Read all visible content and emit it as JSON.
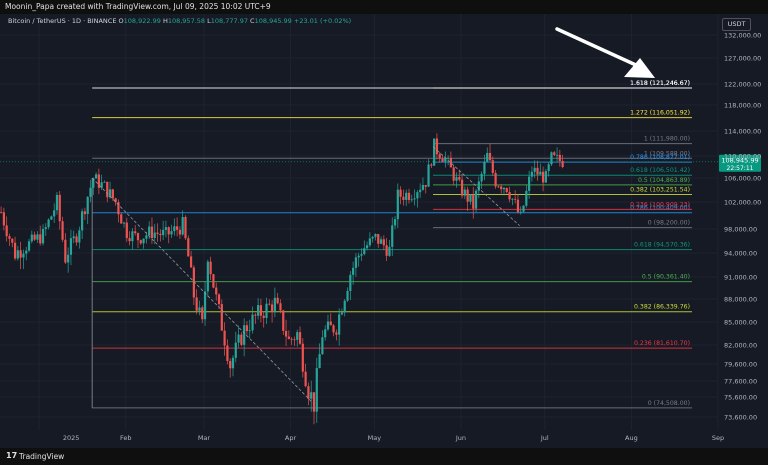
{
  "header": {
    "attribution": "Moonin_Papa created with TradingView.com, Jul 09, 2025 10:02 UTC+9"
  },
  "legend": {
    "symbol": "Bitcoin / TetherUS · 1D · BINANCE",
    "open_label": "O",
    "open": "108,922.99",
    "high_label": "H",
    "high": "108,957.58",
    "low_label": "L",
    "low": "108,777.97",
    "close_label": "C",
    "close": "108,945.99",
    "change": "+23.01 (+0.02%)"
  },
  "currency_badge": "USDT",
  "footer": {
    "brand": "TradingView",
    "logo_glyph": "17"
  },
  "colors": {
    "up": "#26a69a",
    "down": "#ef5350",
    "background": "#161a25",
    "fib_0": "#787b86",
    "fib_236": "#f23645",
    "fib_382": "#cddc39",
    "fib_5": "#4caf50",
    "fib_618": "#089981",
    "fib_786": "#2196f3",
    "fib_1": "#787b86",
    "fib_1272": "#ffeb3b",
    "fib_1618": "#ffffff",
    "current_price": "#089981"
  },
  "chart_data": {
    "type": "candlestick",
    "y_axis_ticks": [
      73600,
      75600,
      77600,
      79600,
      82000,
      85000,
      88000,
      91000,
      94000,
      98000,
      102000,
      106000,
      110000,
      114000,
      118000,
      122000,
      127000,
      132000
    ],
    "y_axis_labels": [
      "73,600.00",
      "75,600.00",
      "77,600.00",
      "79,600.00",
      "82,000.00",
      "85,000.00",
      "88,000.00",
      "91,000.00",
      "94,000.00",
      "98,000.00",
      "102,000.00",
      "106,000.00",
      "110,000.00",
      "114,000.00",
      "118,000.00",
      "122,000.00",
      "127,000.00",
      "132,000.00"
    ],
    "x_axis_labels": [
      {
        "label": "2025",
        "date": "2025-01-01"
      },
      {
        "label": "Feb",
        "date": "2025-02-01"
      },
      {
        "label": "Mar",
        "date": "2025-03-01"
      },
      {
        "label": "Apr",
        "date": "2025-04-01"
      },
      {
        "label": "May",
        "date": "2025-05-01"
      },
      {
        "label": "Jun",
        "date": "2025-06-01"
      },
      {
        "label": "Jul",
        "date": "2025-07-01"
      },
      {
        "label": "Aug",
        "date": "2025-08-01"
      },
      {
        "label": "Sep",
        "date": "2025-09-01"
      }
    ],
    "x_range": [
      "2024-12-18",
      "2025-09-01"
    ],
    "current_price": {
      "value": 108945.99,
      "label": "108,945.99",
      "countdown": "22:57:11"
    },
    "price_path": [
      {
        "date": "2024-12-18",
        "price": 100500
      },
      {
        "date": "2024-12-23",
        "price": 94000
      },
      {
        "date": "2024-12-28",
        "price": 95500
      },
      {
        "date": "2025-01-02",
        "price": 97000
      },
      {
        "date": "2025-01-07",
        "price": 102000
      },
      {
        "date": "2025-01-10",
        "price": 93500
      },
      {
        "date": "2025-01-14",
        "price": 97000
      },
      {
        "date": "2025-01-20",
        "price": 106000
      },
      {
        "date": "2025-01-24",
        "price": 104500
      },
      {
        "date": "2025-01-28",
        "price": 102000
      },
      {
        "date": "2025-02-01",
        "price": 97500
      },
      {
        "date": "2025-02-05",
        "price": 96500
      },
      {
        "date": "2025-02-10",
        "price": 97500
      },
      {
        "date": "2025-02-15",
        "price": 97000
      },
      {
        "date": "2025-02-21",
        "price": 98500
      },
      {
        "date": "2025-02-25",
        "price": 88500
      },
      {
        "date": "2025-02-28",
        "price": 84500
      },
      {
        "date": "2025-03-02",
        "price": 94000
      },
      {
        "date": "2025-03-05",
        "price": 88000
      },
      {
        "date": "2025-03-10",
        "price": 79500
      },
      {
        "date": "2025-03-15",
        "price": 84000
      },
      {
        "date": "2025-03-20",
        "price": 86000
      },
      {
        "date": "2025-03-26",
        "price": 87500
      },
      {
        "date": "2025-03-31",
        "price": 82500
      },
      {
        "date": "2025-04-03",
        "price": 83500
      },
      {
        "date": "2025-04-07",
        "price": 76500
      },
      {
        "date": "2025-04-09",
        "price": 75000
      },
      {
        "date": "2025-04-12",
        "price": 83500
      },
      {
        "date": "2025-04-17",
        "price": 84500
      },
      {
        "date": "2025-04-22",
        "price": 91500
      },
      {
        "date": "2025-04-26",
        "price": 94500
      },
      {
        "date": "2025-05-01",
        "price": 96500
      },
      {
        "date": "2025-05-06",
        "price": 94500
      },
      {
        "date": "2025-05-09",
        "price": 103000
      },
      {
        "date": "2025-05-14",
        "price": 103500
      },
      {
        "date": "2025-05-19",
        "price": 105500
      },
      {
        "date": "2025-05-22",
        "price": 111500
      },
      {
        "date": "2025-05-26",
        "price": 109500
      },
      {
        "date": "2025-05-31",
        "price": 104500
      },
      {
        "date": "2025-06-05",
        "price": 101500
      },
      {
        "date": "2025-06-10",
        "price": 110000
      },
      {
        "date": "2025-06-13",
        "price": 105500
      },
      {
        "date": "2025-06-17",
        "price": 104500
      },
      {
        "date": "2025-06-22",
        "price": 99500
      },
      {
        "date": "2025-06-26",
        "price": 107500
      },
      {
        "date": "2025-07-01",
        "price": 106000
      },
      {
        "date": "2025-07-03",
        "price": 109500
      },
      {
        "date": "2025-07-08",
        "price": 108945.99
      }
    ],
    "fib_levels_major": [
      {
        "ratio": "0",
        "value": 74508,
        "label": "0 (74,508.00)",
        "color": "#787b86"
      },
      {
        "ratio": "0.236",
        "value": 81610.7,
        "label": "0.236 (81,610.70)",
        "color": "#f23645"
      },
      {
        "ratio": "0.382",
        "value": 86339.76,
        "label": "0.382 (86,339.76)",
        "color": "#cddc39"
      },
      {
        "ratio": "0.5",
        "value": 90361.4,
        "label": "0.5 (90,361.40)",
        "color": "#4caf50"
      },
      {
        "ratio": "0.618",
        "value": 94570.36,
        "label": "0.618 (94,570.36)",
        "color": "#089981"
      },
      {
        "ratio": "0.786",
        "value": 100409.0,
        "label": "0.786 (100,409.00)",
        "color": "#2196f3"
      },
      {
        "ratio": "1",
        "value": 109588.0,
        "label": "1 (109,588.00)",
        "color": "#787b86"
      },
      {
        "ratio": "1.272",
        "value": 116051.92,
        "label": "1.272 (116,051.92)",
        "color": "#ffeb3b"
      },
      {
        "ratio": "1.618",
        "value": 121246.67,
        "label": "1.618 (121,246.67)",
        "color": "#ffffff"
      }
    ],
    "fib_levels_minor": [
      {
        "ratio": "0",
        "value": 98200,
        "label": "0 (98,200.00)",
        "color": "#787b86"
      },
      {
        "ratio": "0.236",
        "value": 100909.23,
        "label": "0.236 (100,909.23)",
        "color": "#f23645"
      },
      {
        "ratio": "0.382",
        "value": 103251.54,
        "label": "0.382 (103,251.54)",
        "color": "#cddc39"
      },
      {
        "ratio": "0.5",
        "value": 104863.89,
        "label": "0.5 (104,863.89)",
        "color": "#4caf50"
      },
      {
        "ratio": "0.618",
        "value": 106501.42,
        "label": "0.618 (106,501.42)",
        "color": "#089981"
      },
      {
        "ratio": "0.786",
        "value": 108877.01,
        "label": "0.786 (108,877.01)",
        "color": "#2196f3"
      },
      {
        "ratio": "1",
        "value": 111980.0,
        "label": "1 (111,980.00)",
        "color": "#787b86"
      },
      {
        "ratio": "1.618",
        "value": 121246.67,
        "label": "1.618 (121,246.67)",
        "color": "#ffffff"
      }
    ]
  }
}
